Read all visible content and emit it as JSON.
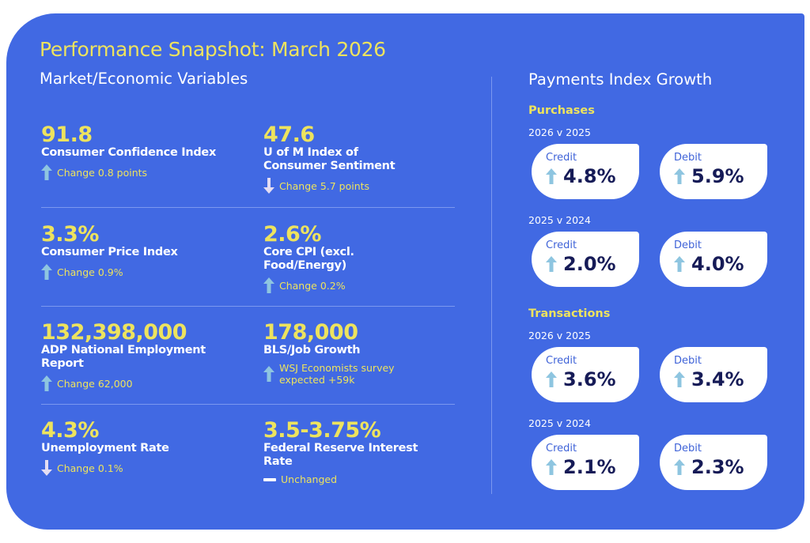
{
  "header": {
    "title": "Performance Snapshot: March 2026",
    "subtitle": "Market/Economic Variables"
  },
  "metrics": [
    {
      "value": "91.8",
      "label": "Consumer Confidence Index",
      "change": "Change 0.8 points",
      "direction": "up"
    },
    {
      "value": "47.6",
      "label": "U of M Index of Consumer Sentiment",
      "change": "Change 5.7 points",
      "direction": "down"
    },
    {
      "value": "3.3%",
      "label": "Consumer Price Index",
      "change": "Change 0.9%",
      "direction": "up"
    },
    {
      "value": "2.6%",
      "label": "Core CPI (excl. Food/Energy)",
      "change": "Change 0.2%",
      "direction": "up"
    },
    {
      "value": "132,398,000",
      "label": "ADP National Employment Report",
      "change": "Change 62,000",
      "direction": "up"
    },
    {
      "value": "178,000",
      "label": "BLS/Job Growth",
      "change": "WSJ Economists survey expected +59k",
      "direction": "up"
    },
    {
      "value": "4.3%",
      "label": "Unemployment Rate",
      "change": "Change 0.1%",
      "direction": "down"
    },
    {
      "value": "3.5-3.75%",
      "label": "Federal Reserve Interest Rate",
      "change": "Unchanged",
      "direction": "flat"
    }
  ],
  "payments": {
    "title": "Payments Index Growth",
    "sections": [
      {
        "name": "Purchases",
        "periods": [
          {
            "label": "2026 v 2025",
            "credit": "4.8%",
            "debit": "5.9%"
          },
          {
            "label": "2025 v 2024",
            "credit": "2.0%",
            "debit": "4.0%"
          }
        ]
      },
      {
        "name": "Transactions",
        "periods": [
          {
            "label": "2026 v 2025",
            "credit": "3.6%",
            "debit": "3.4%"
          },
          {
            "label": "2025 v 2024",
            "credit": "2.1%",
            "debit": "2.3%"
          }
        ]
      }
    ],
    "credit_label": "Credit",
    "debit_label": "Debit"
  },
  "colors": {
    "background": "#4169E3",
    "accent": "#EDE35E",
    "up": "#8EC5E0",
    "down": "#E4DDF3",
    "value": "#161B57"
  }
}
